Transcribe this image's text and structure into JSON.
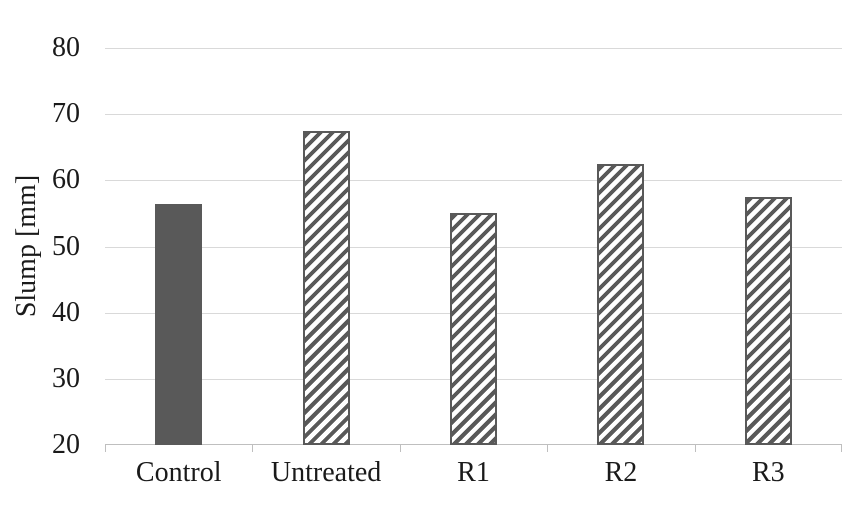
{
  "chart_data": {
    "type": "bar",
    "categories": [
      "Control",
      "Untreated",
      "R1",
      "R2",
      "R3"
    ],
    "values": [
      56.5,
      67.5,
      55,
      62.5,
      57.5
    ],
    "title": "",
    "xlabel": "",
    "ylabel": "Slump [mm]",
    "ylim": [
      20,
      80
    ],
    "yticks": [
      20,
      30,
      40,
      50,
      60,
      70,
      80
    ],
    "grid": true,
    "legend": "none",
    "bar_fill_styles": [
      "solid",
      "hatch",
      "hatch",
      "hatch",
      "hatch"
    ],
    "colors": {
      "bar": "#595959",
      "hatch_background": "#ffffff",
      "gridline": "#d9d9d9",
      "axis_line": "#bfbfbf",
      "text": "#1a1a1a",
      "background": "#ffffff"
    }
  }
}
